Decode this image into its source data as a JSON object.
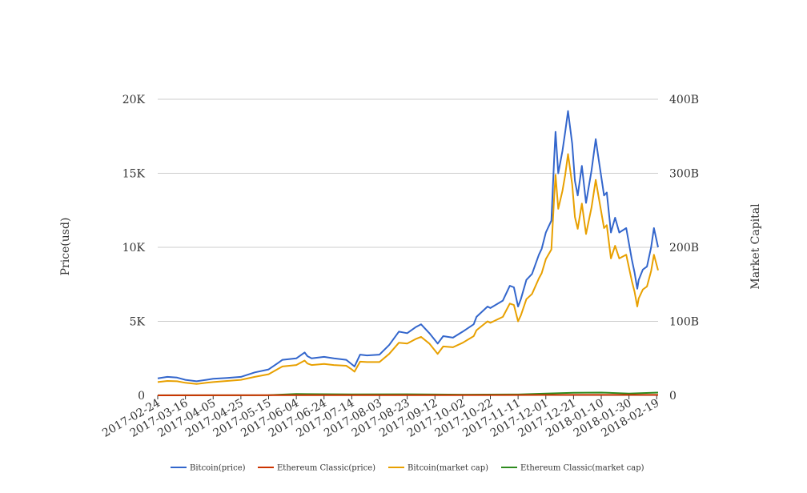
{
  "chart_data": {
    "type": "line",
    "title": "",
    "xlabel": "",
    "ylabel": "Price(usd)",
    "y2label": "Market Capital",
    "ylim": [
      0,
      20000
    ],
    "y2lim": [
      0,
      400000000000
    ],
    "grid": true,
    "legend_position": "bottom",
    "left_ticks": [
      {
        "value": 0,
        "label": "0"
      },
      {
        "value": 5000,
        "label": "5K"
      },
      {
        "value": 10000,
        "label": "10K"
      },
      {
        "value": 15000,
        "label": "15K"
      },
      {
        "value": 20000,
        "label": "20K"
      }
    ],
    "right_ticks": [
      {
        "value": 0,
        "label": "0"
      },
      {
        "value": 100000000000,
        "label": "100B"
      },
      {
        "value": 200000000000,
        "label": "200B"
      },
      {
        "value": 300000000000,
        "label": "300B"
      },
      {
        "value": 400000000000,
        "label": "400B"
      }
    ],
    "x_tick_labels": [
      "2017-02-24",
      "2017-03-16",
      "2017-04-05",
      "2017-04-25",
      "2017-05-15",
      "2017-06-04",
      "2017-06-24",
      "2017-07-14",
      "2017-08-03",
      "2017-08-23",
      "2017-09-12",
      "2017-10-02",
      "2017-10-22",
      "2017-11-11",
      "2017-12-01",
      "2017-12-21",
      "2018-01-10",
      "2018-01-30",
      "2018-02-19"
    ],
    "x_start": "2017-02-24",
    "x_end": "2018-02-20",
    "series": [
      {
        "name": "Bitcoin(price)",
        "axis": "left",
        "color": "#3366cc",
        "x": [
          "2017-02-24",
          "2017-03-03",
          "2017-03-10",
          "2017-03-16",
          "2017-03-24",
          "2017-03-31",
          "2017-04-05",
          "2017-04-15",
          "2017-04-25",
          "2017-05-05",
          "2017-05-15",
          "2017-05-22",
          "2017-05-25",
          "2017-06-04",
          "2017-06-10",
          "2017-06-12",
          "2017-06-15",
          "2017-06-24",
          "2017-07-01",
          "2017-07-10",
          "2017-07-14",
          "2017-07-16",
          "2017-07-20",
          "2017-07-25",
          "2017-08-03",
          "2017-08-10",
          "2017-08-17",
          "2017-08-23",
          "2017-08-29",
          "2017-09-02",
          "2017-09-08",
          "2017-09-14",
          "2017-09-18",
          "2017-09-25",
          "2017-10-02",
          "2017-10-10",
          "2017-10-12",
          "2017-10-20",
          "2017-10-22",
          "2017-10-31",
          "2017-11-05",
          "2017-11-08",
          "2017-11-11",
          "2017-11-13",
          "2017-11-17",
          "2017-11-21",
          "2017-11-26",
          "2017-11-28",
          "2017-12-01",
          "2017-12-05",
          "2017-12-07",
          "2017-12-08",
          "2017-12-10",
          "2017-12-13",
          "2017-12-15",
          "2017-12-17",
          "2017-12-20",
          "2017-12-22",
          "2017-12-24",
          "2017-12-27",
          "2017-12-30",
          "2018-01-03",
          "2018-01-06",
          "2018-01-08",
          "2018-01-12",
          "2018-01-14",
          "2018-01-17",
          "2018-01-20",
          "2018-01-23",
          "2018-01-28",
          "2018-02-01",
          "2018-02-03",
          "2018-02-05",
          "2018-02-06",
          "2018-02-09",
          "2018-02-12",
          "2018-02-15",
          "2018-02-17",
          "2018-02-20"
        ],
        "values": [
          1150,
          1250,
          1200,
          1050,
          950,
          1050,
          1120,
          1180,
          1250,
          1550,
          1750,
          2200,
          2400,
          2500,
          2900,
          2650,
          2500,
          2600,
          2500,
          2400,
          2100,
          1950,
          2750,
          2700,
          2750,
          3400,
          4300,
          4200,
          4600,
          4800,
          4200,
          3500,
          4000,
          3900,
          4300,
          4800,
          5300,
          6000,
          5900,
          6400,
          7400,
          7300,
          6000,
          6500,
          7800,
          8200,
          9500,
          9900,
          11000,
          11800,
          16000,
          17800,
          15000,
          16500,
          17800,
          19200,
          17000,
          14500,
          13500,
          15500,
          13000,
          15200,
          17300,
          16000,
          13500,
          13700,
          11000,
          12000,
          11000,
          11300,
          9200,
          8300,
          7200,
          7800,
          8500,
          8700,
          10000,
          11300,
          10000
        ]
      },
      {
        "name": "Ethereum Classic(price)",
        "axis": "left",
        "color": "#cc3300",
        "x": [
          "2017-02-24",
          "2017-06-04",
          "2017-09-12",
          "2017-12-21",
          "2018-02-20"
        ],
        "values": [
          2,
          15,
          12,
          30,
          35
        ]
      },
      {
        "name": "Bitcoin(market cap)",
        "axis": "right",
        "color": "#e8a000",
        "x": [
          "2017-02-24",
          "2017-03-03",
          "2017-03-10",
          "2017-03-16",
          "2017-03-24",
          "2017-03-31",
          "2017-04-05",
          "2017-04-15",
          "2017-04-25",
          "2017-05-05",
          "2017-05-15",
          "2017-05-22",
          "2017-05-25",
          "2017-06-04",
          "2017-06-10",
          "2017-06-12",
          "2017-06-15",
          "2017-06-24",
          "2017-07-01",
          "2017-07-10",
          "2017-07-14",
          "2017-07-16",
          "2017-07-20",
          "2017-07-25",
          "2017-08-03",
          "2017-08-10",
          "2017-08-17",
          "2017-08-23",
          "2017-08-29",
          "2017-09-02",
          "2017-09-08",
          "2017-09-14",
          "2017-09-18",
          "2017-09-25",
          "2017-10-02",
          "2017-10-10",
          "2017-10-12",
          "2017-10-20",
          "2017-10-22",
          "2017-10-31",
          "2017-11-05",
          "2017-11-08",
          "2017-11-11",
          "2017-11-13",
          "2017-11-17",
          "2017-11-21",
          "2017-11-26",
          "2017-11-28",
          "2017-12-01",
          "2017-12-05",
          "2017-12-07",
          "2017-12-08",
          "2017-12-10",
          "2017-12-13",
          "2017-12-15",
          "2017-12-17",
          "2017-12-20",
          "2017-12-22",
          "2017-12-24",
          "2017-12-27",
          "2017-12-30",
          "2018-01-03",
          "2018-01-06",
          "2018-01-08",
          "2018-01-12",
          "2018-01-14",
          "2018-01-17",
          "2018-01-20",
          "2018-01-23",
          "2018-01-28",
          "2018-02-01",
          "2018-02-03",
          "2018-02-05",
          "2018-02-06",
          "2018-02-09",
          "2018-02-12",
          "2018-02-15",
          "2018-02-17",
          "2018-02-20"
        ],
        "values": [
          18000000000,
          19500000000,
          19000000000,
          17000000000,
          15500000000,
          17000000000,
          18000000000,
          19500000000,
          21000000000,
          25000000000,
          28500000000,
          36000000000,
          39000000000,
          41000000000,
          47000000000,
          43000000000,
          41000000000,
          42500000000,
          41000000000,
          40000000000,
          35000000000,
          32000000000,
          45500000000,
          45000000000,
          45000000000,
          56000000000,
          71000000000,
          70000000000,
          76000000000,
          79000000000,
          70000000000,
          56000000000,
          66000000000,
          65000000000,
          71000000000,
          80000000000,
          88000000000,
          100000000000,
          98000000000,
          106000000000,
          124000000000,
          122000000000,
          100000000000,
          108000000000,
          130000000000,
          137000000000,
          158000000000,
          165000000000,
          184000000000,
          197000000000,
          268000000000,
          298000000000,
          252000000000,
          276000000000,
          298000000000,
          326000000000,
          285000000000,
          241000000000,
          225000000000,
          259000000000,
          218000000000,
          254000000000,
          291000000000,
          269000000000,
          226000000000,
          230000000000,
          185000000000,
          202000000000,
          185000000000,
          190000000000,
          155000000000,
          140000000000,
          120000000000,
          131000000000,
          143000000000,
          147000000000,
          168000000000,
          190000000000,
          169000000000
        ]
      },
      {
        "name": "Ethereum Classic(market cap)",
        "axis": "right",
        "color": "#2e8b1e",
        "x": [
          "2017-02-24",
          "2017-05-15",
          "2017-06-04",
          "2017-07-14",
          "2017-08-23",
          "2017-10-02",
          "2017-11-11",
          "2017-12-01",
          "2017-12-21",
          "2018-01-10",
          "2018-01-30",
          "2018-02-20"
        ],
        "values": [
          100000000,
          200000000,
          1800000000,
          1300000000,
          1500000000,
          1000000000,
          1200000000,
          2500000000,
          3500000000,
          3800000000,
          2500000000,
          3800000000
        ]
      }
    ]
  }
}
